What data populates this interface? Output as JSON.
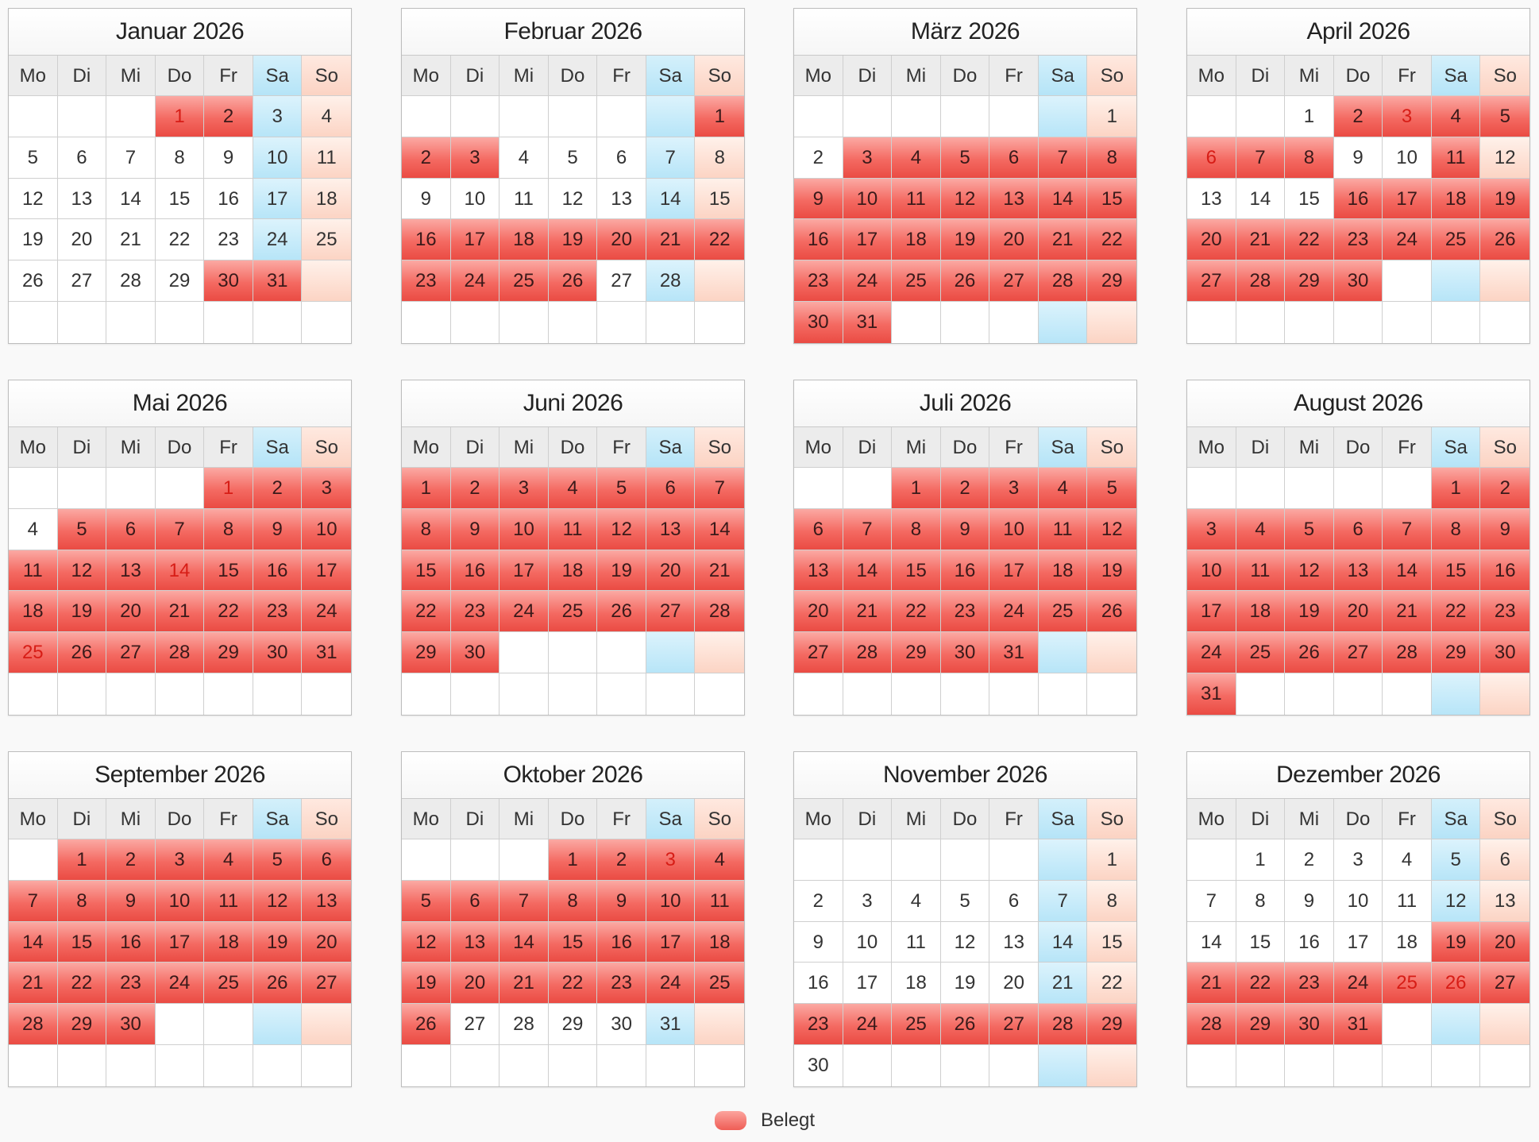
{
  "weekdays": [
    "Mo",
    "Di",
    "Mi",
    "Do",
    "Fr",
    "Sa",
    "So"
  ],
  "legend": {
    "label": "Belegt",
    "color": "#f46a62"
  },
  "colors": {
    "booked": "#f46a62",
    "saturday": "#b7e5f8",
    "sunday": "#fcd4c4",
    "holiday_text": "#e2302a"
  },
  "months": [
    {
      "title": "Januar 2026",
      "offset": 3,
      "days": 31,
      "booked": [
        1,
        2,
        30,
        31
      ],
      "holidays": [
        1
      ]
    },
    {
      "title": "Februar 2026",
      "offset": 6,
      "days": 28,
      "booked": [
        1,
        2,
        3,
        16,
        17,
        18,
        19,
        20,
        21,
        22,
        23,
        24,
        25,
        26
      ],
      "holidays": []
    },
    {
      "title": "März 2026",
      "offset": 6,
      "days": 31,
      "booked": [
        3,
        4,
        5,
        6,
        7,
        8,
        9,
        10,
        11,
        12,
        13,
        14,
        15,
        16,
        17,
        18,
        19,
        20,
        21,
        22,
        23,
        24,
        25,
        26,
        27,
        28,
        29,
        30,
        31
      ],
      "holidays": []
    },
    {
      "title": "April 2026",
      "offset": 2,
      "days": 30,
      "booked": [
        2,
        3,
        4,
        5,
        6,
        7,
        8,
        11,
        16,
        17,
        18,
        19,
        20,
        21,
        22,
        23,
        24,
        25,
        26,
        27,
        28,
        29,
        30
      ],
      "holidays": [
        3,
        6
      ]
    },
    {
      "title": "Mai 2026",
      "offset": 4,
      "days": 31,
      "booked": [
        1,
        2,
        3,
        5,
        6,
        7,
        8,
        9,
        10,
        11,
        12,
        13,
        14,
        15,
        16,
        17,
        18,
        19,
        20,
        21,
        22,
        23,
        24,
        25,
        26,
        27,
        28,
        29,
        30,
        31
      ],
      "holidays": [
        1,
        14,
        25
      ]
    },
    {
      "title": "Juni 2026",
      "offset": 0,
      "days": 30,
      "booked": [
        1,
        2,
        3,
        4,
        5,
        6,
        7,
        8,
        9,
        10,
        11,
        12,
        13,
        14,
        15,
        16,
        17,
        18,
        19,
        20,
        21,
        22,
        23,
        24,
        25,
        26,
        27,
        28,
        29,
        30
      ],
      "holidays": []
    },
    {
      "title": "Juli 2026",
      "offset": 2,
      "days": 31,
      "booked": [
        1,
        2,
        3,
        4,
        5,
        6,
        7,
        8,
        9,
        10,
        11,
        12,
        13,
        14,
        15,
        16,
        17,
        18,
        19,
        20,
        21,
        22,
        23,
        24,
        25,
        26,
        27,
        28,
        29,
        30,
        31
      ],
      "holidays": []
    },
    {
      "title": "August 2026",
      "offset": 5,
      "days": 31,
      "booked": [
        1,
        2,
        3,
        4,
        5,
        6,
        7,
        8,
        9,
        10,
        11,
        12,
        13,
        14,
        15,
        16,
        17,
        18,
        19,
        20,
        21,
        22,
        23,
        24,
        25,
        26,
        27,
        28,
        29,
        30,
        31
      ],
      "holidays": []
    },
    {
      "title": "September 2026",
      "offset": 1,
      "days": 30,
      "booked": [
        1,
        2,
        3,
        4,
        5,
        6,
        7,
        8,
        9,
        10,
        11,
        12,
        13,
        14,
        15,
        16,
        17,
        18,
        19,
        20,
        21,
        22,
        23,
        24,
        25,
        26,
        27,
        28,
        29,
        30
      ],
      "holidays": []
    },
    {
      "title": "Oktober 2026",
      "offset": 3,
      "days": 31,
      "booked": [
        1,
        2,
        3,
        4,
        5,
        6,
        7,
        8,
        9,
        10,
        11,
        12,
        13,
        14,
        15,
        16,
        17,
        18,
        19,
        20,
        21,
        22,
        23,
        24,
        25,
        26
      ],
      "holidays": [
        3
      ]
    },
    {
      "title": "November 2026",
      "offset": 6,
      "days": 30,
      "booked": [
        23,
        24,
        25,
        26,
        27,
        28,
        29
      ],
      "holidays": []
    },
    {
      "title": "Dezember 2026",
      "offset": 1,
      "days": 31,
      "booked": [
        19,
        20,
        21,
        22,
        23,
        24,
        25,
        26,
        27,
        28,
        29,
        30,
        31
      ],
      "holidays": [
        25,
        26
      ]
    }
  ]
}
